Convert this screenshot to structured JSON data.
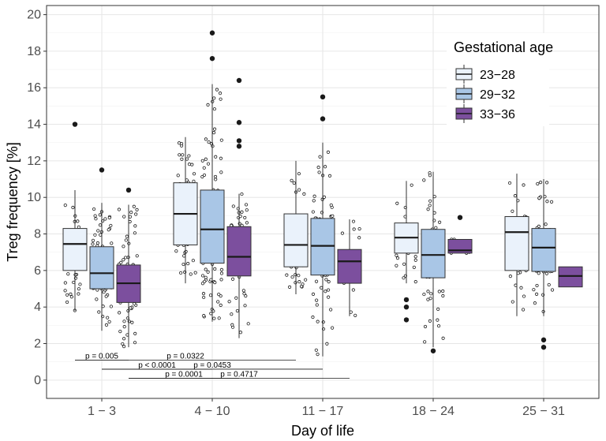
{
  "chart_data": {
    "type": "boxplot",
    "title": "",
    "xlabel": "Day of life",
    "ylabel": "Treg frequency [%]",
    "ylim": [
      -1,
      20.5
    ],
    "yticks": [
      0,
      2,
      4,
      6,
      8,
      10,
      12,
      14,
      16,
      18,
      20
    ],
    "categories": [
      "1 − 3",
      "4 − 10",
      "11 − 17",
      "18 − 24",
      "25 − 31"
    ],
    "legend": {
      "title": "Gestational age",
      "position": "top-right"
    },
    "series": [
      {
        "name": "23−28",
        "color": "#eaf2fb",
        "boxes": [
          {
            "q1": 6.0,
            "median": 7.45,
            "q3": 8.3,
            "wlo": 3.8,
            "whi": 10.4,
            "outliers": [
              14.0
            ]
          },
          {
            "q1": 7.4,
            "median": 9.1,
            "q3": 10.8,
            "wlo": 5.3,
            "whi": 13.3,
            "outliers": []
          },
          {
            "q1": 6.2,
            "median": 7.4,
            "q3": 9.1,
            "wlo": 4.7,
            "whi": 12.0,
            "outliers": []
          },
          {
            "q1": 6.95,
            "median": 7.8,
            "q3": 8.6,
            "wlo": 5.3,
            "whi": 10.9,
            "outliers": [
              4.4,
              4.0,
              3.3
            ]
          },
          {
            "q1": 6.0,
            "median": 8.1,
            "q3": 8.95,
            "wlo": 3.5,
            "whi": 11.3,
            "outliers": []
          }
        ]
      },
      {
        "name": "29−32",
        "color": "#a9c6e6",
        "boxes": [
          {
            "q1": 5.0,
            "median": 5.85,
            "q3": 7.3,
            "wlo": 2.7,
            "whi": 9.7,
            "outliers": [
              11.5
            ]
          },
          {
            "q1": 6.4,
            "median": 8.25,
            "q3": 10.4,
            "wlo": 3.2,
            "whi": 16.2,
            "outliers": [
              19.0,
              17.6
            ]
          },
          {
            "q1": 5.75,
            "median": 7.35,
            "q3": 8.85,
            "wlo": 1.3,
            "whi": 13.0,
            "outliers": [
              15.5,
              14.3
            ]
          },
          {
            "q1": 5.6,
            "median": 6.85,
            "q3": 8.25,
            "wlo": 1.8,
            "whi": 11.4,
            "outliers": [
              1.6
            ]
          },
          {
            "q1": 5.95,
            "median": 7.25,
            "q3": 8.3,
            "wlo": 3.5,
            "whi": 11.0,
            "outliers": [
              2.2,
              1.8
            ]
          }
        ]
      },
      {
        "name": "33−36",
        "color": "#7c4f9e",
        "boxes": [
          {
            "q1": 4.25,
            "median": 5.3,
            "q3": 6.3,
            "wlo": 1.8,
            "whi": 9.6,
            "outliers": [
              10.4
            ]
          },
          {
            "q1": 5.7,
            "median": 6.75,
            "q3": 8.4,
            "wlo": 2.3,
            "whi": 10.2,
            "outliers": [
              16.4,
              14.1,
              13.1,
              12.8
            ]
          },
          {
            "q1": 5.3,
            "median": 6.5,
            "q3": 7.15,
            "wlo": 3.5,
            "whi": 8.8,
            "outliers": []
          },
          {
            "q1": 6.95,
            "median": 7.1,
            "q3": 7.7,
            "wlo": 6.95,
            "whi": 7.7,
            "outliers": [
              8.9
            ]
          },
          {
            "q1": 5.1,
            "median": 5.7,
            "q3": 6.2,
            "wlo": 5.1,
            "whi": 6.2,
            "outliers": []
          }
        ]
      }
    ],
    "annotations": [
      {
        "text": "p = 0.005",
        "from": [
          0,
          0
        ],
        "to": [
          0,
          2
        ],
        "y": 1.1
      },
      {
        "text": "p = 0.0322",
        "from": [
          0,
          0
        ],
        "to": [
          2,
          0
        ],
        "y": 1.1
      },
      {
        "text": "p < 0.0001",
        "from": [
          0,
          1
        ],
        "to": [
          1,
          1
        ],
        "y": 0.6
      },
      {
        "text": "p = 0.0453",
        "from": [
          0,
          1
        ],
        "to": [
          2,
          1
        ],
        "y": 0.6
      },
      {
        "text": "p = 0.0001",
        "from": [
          0,
          2
        ],
        "to": [
          1,
          2
        ],
        "y": 0.1
      },
      {
        "text": "p = 0.4717",
        "from": [
          0,
          2
        ],
        "to": [
          2,
          2
        ],
        "y": 0.1
      }
    ]
  }
}
